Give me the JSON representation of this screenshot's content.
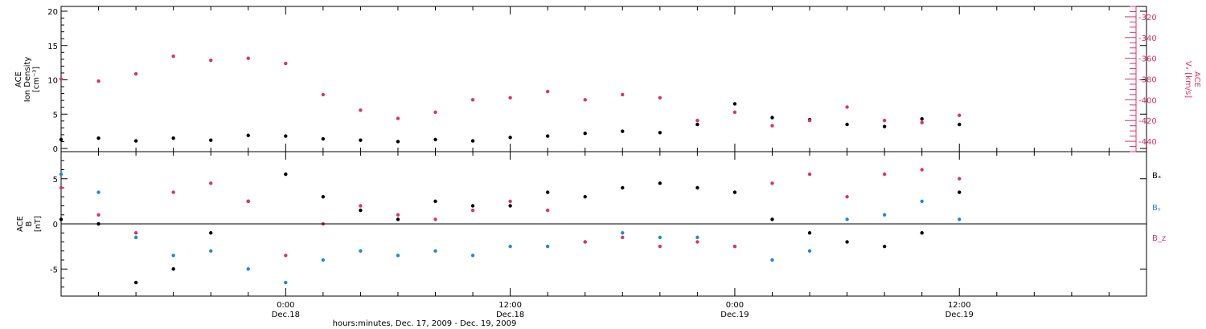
{
  "chart_data": [
    {
      "type": "scatter",
      "panel": "top",
      "ylabel_lines": [
        "ACE",
        "Ion Density",
        "[cm⁻³]"
      ],
      "ylim": [
        0,
        20
      ],
      "yticks": [
        0,
        5,
        10,
        15,
        20
      ],
      "right_axis": {
        "label_lines": [
          "ACE",
          "Vₓ [km/s]"
        ],
        "ylim": [
          -450,
          -310
        ],
        "yticks": [
          -320,
          -340,
          -360,
          -380,
          -400,
          -420,
          -440
        ],
        "color": "#dd3366"
      },
      "series": [
        {
          "key": "density",
          "axis": "left",
          "color": "#000000",
          "x": [
            0,
            2,
            4,
            6,
            8,
            10,
            12,
            14,
            16,
            18,
            20,
            22,
            24,
            26,
            28,
            30,
            32,
            34,
            36,
            38,
            40,
            42,
            44,
            46,
            48
          ],
          "y": [
            1.3,
            1.5,
            1.1,
            1.5,
            1.2,
            1.9,
            1.8,
            1.4,
            1.2,
            1.0,
            1.3,
            1.1,
            1.6,
            1.8,
            2.2,
            2.5,
            2.3,
            3.5,
            6.5,
            4.5,
            4.2,
            3.5,
            3.2,
            4.3,
            3.5
          ]
        },
        {
          "key": "vx",
          "axis": "right",
          "color": "#dd3366",
          "x": [
            0,
            2,
            4,
            6,
            8,
            10,
            12,
            14,
            16,
            18,
            20,
            22,
            24,
            26,
            28,
            30,
            32,
            34,
            36,
            38,
            40,
            42,
            44,
            46,
            48
          ],
          "y": [
            -380,
            -382,
            -375,
            -358,
            -362,
            -360,
            -365,
            -395,
            -410,
            -418,
            -412,
            -400,
            -398,
            -392,
            -400,
            -395,
            -398,
            -420,
            -412,
            -425,
            -420,
            -407,
            -420,
            -422,
            -415
          ]
        }
      ]
    },
    {
      "type": "scatter",
      "panel": "bottom",
      "ylabel_lines": [
        "ACE",
        "B",
        "[nT]"
      ],
      "ylim": [
        -8,
        8
      ],
      "yticks": [
        -5,
        0,
        5
      ],
      "zero_line": true,
      "legend_labels": [
        "Bₓ",
        "Bᵧ",
        "B_z"
      ],
      "series": [
        {
          "key": "bx",
          "color": "#000000",
          "x": [
            0,
            2,
            4,
            6,
            8,
            10,
            12,
            14,
            16,
            18,
            20,
            22,
            24,
            26,
            28,
            30,
            32,
            34,
            36,
            38,
            40,
            42,
            44,
            46,
            48
          ],
          "y": [
            0.5,
            0.0,
            -6.5,
            -5.0,
            -1.0,
            2.5,
            5.5,
            3.0,
            1.5,
            0.5,
            2.5,
            2.0,
            2.0,
            3.5,
            3.0,
            4.0,
            4.5,
            4.0,
            3.5,
            0.5,
            -1.0,
            -2.0,
            -2.5,
            -1.0,
            3.5
          ]
        },
        {
          "key": "by",
          "color": "#1f88dd",
          "x": [
            0,
            2,
            4,
            6,
            8,
            10,
            12,
            14,
            16,
            18,
            20,
            22,
            24,
            26,
            28,
            30,
            32,
            34,
            36,
            38,
            40,
            42,
            44,
            46,
            48
          ],
          "y": [
            5.5,
            3.5,
            -1.5,
            -3.5,
            -3.0,
            -5.0,
            -6.5,
            -4.0,
            -3.0,
            -3.5,
            -3.0,
            -3.5,
            -2.5,
            -2.5,
            -2.0,
            -1.0,
            -1.5,
            -1.5,
            -2.5,
            -4.0,
            -3.0,
            0.5,
            1.0,
            2.5,
            0.5
          ]
        },
        {
          "key": "bz",
          "color": "#dd3366",
          "x": [
            0,
            2,
            4,
            6,
            8,
            10,
            12,
            14,
            16,
            18,
            20,
            22,
            24,
            26,
            28,
            30,
            32,
            34,
            36,
            38,
            40,
            42,
            44,
            46,
            48
          ],
          "y": [
            4.0,
            1.0,
            -1.0,
            3.5,
            4.5,
            2.5,
            -3.5,
            0.0,
            2.0,
            1.0,
            0.5,
            1.5,
            2.5,
            1.5,
            -2.0,
            -1.5,
            -2.5,
            -2.0,
            -2.5,
            4.5,
            5.5,
            3.0,
            5.5,
            6.0,
            5.0
          ]
        }
      ]
    }
  ],
  "x_axis": {
    "range_hours": [
      0,
      58
    ],
    "ticks": [
      {
        "label": "0:00",
        "sub": "Dec.18"
      },
      {
        "label": "12:00",
        "sub": "Dec.18"
      },
      {
        "label": "0:00",
        "sub": "Dec.19"
      },
      {
        "label": "12:00",
        "sub": "Dec.19"
      }
    ],
    "tick_hours": [
      12,
      24,
      36,
      48
    ],
    "title": "hours:minutes, Dec. 17, 2009 - Dec. 19, 2009"
  }
}
